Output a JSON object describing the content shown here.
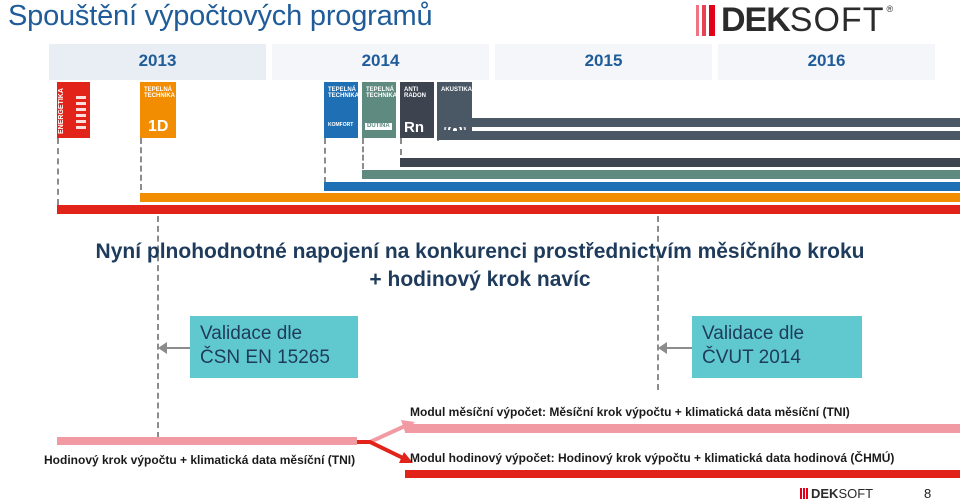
{
  "slide": {
    "title": "Spouštění výpočtových programů",
    "page_number": "8"
  },
  "logo": {
    "dek": "DEK",
    "soft": "SOFT",
    "reg": "®"
  },
  "footer_logo": {
    "dek": "DEK",
    "soft": "SOFT"
  },
  "years": [
    "2013",
    "2014",
    "2015",
    "2016"
  ],
  "programs": [
    {
      "label": "ENERGETIKA",
      "color": "#e2231a"
    },
    {
      "label": "TEPELNÁ TECHNIKA",
      "mark": "1D",
      "color": "#f28c00"
    },
    {
      "label": "TEPELNÁ TECHNIKA",
      "mark": "KOMFORT",
      "color": "#1f6fb5"
    },
    {
      "label": "TEPELNÁ TECHNIKA",
      "mark": "DUTINA",
      "color": "#5e8a7f"
    },
    {
      "label": "ANTI RADON",
      "mark": "Rn",
      "color": "#3d4450"
    },
    {
      "label": "AKUSTIKA",
      "color": "#4a5866"
    }
  ],
  "headline": {
    "line1": "Nyní plnohodnotné napojení na konkurenci prostřednictvím měsíčního kroku",
    "line2": "+ hodinový krok navíc"
  },
  "validation": [
    {
      "line1": "Validace dle",
      "line2": "ČSN EN 15265"
    },
    {
      "line1": "Validace dle",
      "line2": "ČVUT 2014"
    }
  ],
  "modules": {
    "monthly": "Modul měsíční výpočet: Měsíční krok výpočtu + klimatická data měsíční (TNI)",
    "hourly_left": "Hodinový krok výpočtu + klimatická data měsíční (TNI)",
    "hourly": "Modul hodinový výpočet: Hodinový krok výpočtu + klimatická data hodinová (ČHMÚ)"
  }
}
